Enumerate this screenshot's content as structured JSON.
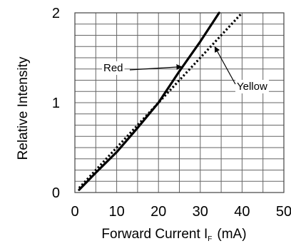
{
  "chart_data": {
    "type": "line",
    "xlabel": "Forward Current I",
    "xlabel_subscript": "F",
    "xlabel_unit": "(mA)",
    "ylabel": "Relative Intensity",
    "xlim": [
      0,
      50
    ],
    "ylim": [
      0,
      2
    ],
    "x_ticks": [
      "0",
      "10",
      "20",
      "30",
      "40",
      "50"
    ],
    "y_ticks": [
      "0",
      "1",
      "2"
    ],
    "grid": true,
    "legend": "none",
    "series": [
      {
        "name": "Red",
        "style": "solid",
        "color": "#000000",
        "x": [
          1,
          5,
          10,
          15,
          20,
          25,
          30,
          34.5
        ],
        "y": [
          0.03,
          0.22,
          0.45,
          0.72,
          1.0,
          1.35,
          1.68,
          2.0
        ]
      },
      {
        "name": "Yellow",
        "style": "dotted",
        "color": "#000000",
        "x": [
          1,
          5,
          10,
          15,
          20,
          25,
          30,
          35,
          40
        ],
        "y": [
          0.05,
          0.25,
          0.5,
          0.75,
          1.0,
          1.25,
          1.5,
          1.75,
          2.0
        ]
      }
    ],
    "annotations": [
      {
        "text": "Red",
        "series": "Red",
        "x": 25.5,
        "y": 1.4
      },
      {
        "text": "Yellow",
        "series": "Yellow",
        "x": 33.5,
        "y": 1.62
      }
    ]
  }
}
